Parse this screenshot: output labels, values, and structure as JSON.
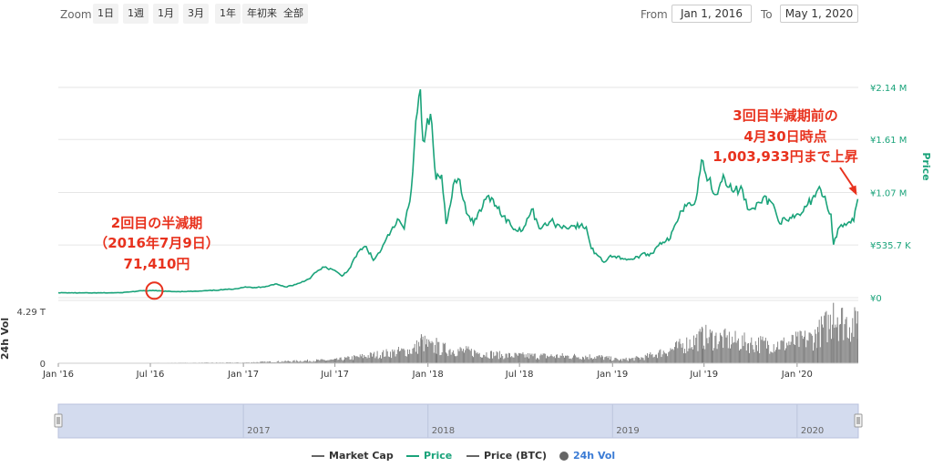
{
  "toolbar": {
    "zoom_label": "Zoom",
    "zoom_options": [
      "1日",
      "1週",
      "1月",
      "3月",
      "1年",
      "年初来",
      "全部"
    ],
    "from_label": "From",
    "from_value": "Jan 1, 2016",
    "to_label": "To",
    "to_value": "May 1, 2020"
  },
  "colors": {
    "price": "#1aa37a",
    "volume": "#7a7a7a",
    "annotation": "#e8321e",
    "navigator_fill": "#d3dbee",
    "grid": "#e6e6e6"
  },
  "chart_data": {
    "type": "line",
    "price_axis": {
      "title": "Price",
      "ylim": [
        0,
        2140000
      ],
      "ticks": [
        0,
        535700,
        1070000,
        1610000,
        2140000
      ],
      "tick_labels": [
        "¥0",
        "¥535.7 K",
        "¥1.07 M",
        "¥1.61 M",
        "¥2.14 M"
      ]
    },
    "volume_axis": {
      "title": "24h Vol",
      "ylim": [
        0,
        5.2
      ],
      "ticks": [
        0,
        4.29
      ],
      "tick_labels": [
        "0",
        "4.29 T"
      ]
    },
    "x_axis": {
      "range": [
        "2016-01-01",
        "2020-05-01"
      ],
      "tick_dates": [
        "2016-01-01",
        "2016-07-01",
        "2017-01-01",
        "2017-07-01",
        "2018-01-01",
        "2018-07-01",
        "2019-01-01",
        "2019-07-01",
        "2020-01-01"
      ],
      "tick_labels": [
        "Jan '16",
        "Jul '16",
        "Jan '17",
        "Jul '17",
        "Jan '18",
        "Jul '18",
        "Jan '19",
        "Jul '19",
        "Jan '20"
      ]
    },
    "price_series": [
      [
        "2016-01-01",
        50000
      ],
      [
        "2016-03-01",
        48000
      ],
      [
        "2016-05-01",
        50000
      ],
      [
        "2016-06-15",
        70000
      ],
      [
        "2016-07-09",
        71410
      ],
      [
        "2016-08-15",
        62000
      ],
      [
        "2016-10-01",
        65000
      ],
      [
        "2016-11-15",
        78000
      ],
      [
        "2016-12-15",
        90000
      ],
      [
        "2017-01-05",
        110000
      ],
      [
        "2017-01-20",
        100000
      ],
      [
        "2017-02-15",
        115000
      ],
      [
        "2017-03-05",
        140000
      ],
      [
        "2017-03-25",
        110000
      ],
      [
        "2017-04-15",
        135000
      ],
      [
        "2017-05-10",
        190000
      ],
      [
        "2017-05-25",
        260000
      ],
      [
        "2017-06-10",
        310000
      ],
      [
        "2017-06-25",
        290000
      ],
      [
        "2017-07-15",
        220000
      ],
      [
        "2017-08-01",
        310000
      ],
      [
        "2017-08-15",
        460000
      ],
      [
        "2017-09-01",
        520000
      ],
      [
        "2017-09-15",
        380000
      ],
      [
        "2017-10-01",
        490000
      ],
      [
        "2017-10-20",
        680000
      ],
      [
        "2017-11-05",
        790000
      ],
      [
        "2017-11-15",
        700000
      ],
      [
        "2017-11-29",
        1100000
      ],
      [
        "2017-12-08",
        1800000
      ],
      [
        "2017-12-17",
        2120000
      ],
      [
        "2017-12-22",
        1600000
      ],
      [
        "2017-12-28",
        1700000
      ],
      [
        "2018-01-06",
        1870000
      ],
      [
        "2018-01-17",
        1200000
      ],
      [
        "2018-01-28",
        1250000
      ],
      [
        "2018-02-06",
        750000
      ],
      [
        "2018-02-20",
        1150000
      ],
      [
        "2018-03-05",
        1200000
      ],
      [
        "2018-03-18",
        860000
      ],
      [
        "2018-04-01",
        750000
      ],
      [
        "2018-04-25",
        1000000
      ],
      [
        "2018-05-10",
        1000000
      ],
      [
        "2018-05-30",
        830000
      ],
      [
        "2018-06-25",
        680000
      ],
      [
        "2018-07-10",
        720000
      ],
      [
        "2018-07-25",
        900000
      ],
      [
        "2018-08-12",
        700000
      ],
      [
        "2018-09-01",
        780000
      ],
      [
        "2018-09-20",
        720000
      ],
      [
        "2018-10-15",
        730000
      ],
      [
        "2018-11-10",
        720000
      ],
      [
        "2018-11-20",
        500000
      ],
      [
        "2018-12-05",
        420000
      ],
      [
        "2018-12-15",
        360000
      ],
      [
        "2018-12-28",
        430000
      ],
      [
        "2019-01-20",
        400000
      ],
      [
        "2019-02-10",
        390000
      ],
      [
        "2019-02-25",
        430000
      ],
      [
        "2019-03-20",
        450000
      ],
      [
        "2019-04-05",
        560000
      ],
      [
        "2019-04-25",
        600000
      ],
      [
        "2019-05-15",
        880000
      ],
      [
        "2019-05-30",
        960000
      ],
      [
        "2019-06-15",
        1000000
      ],
      [
        "2019-06-26",
        1400000
      ],
      [
        "2019-07-10",
        1200000
      ],
      [
        "2019-07-25",
        1050000
      ],
      [
        "2019-08-08",
        1250000
      ],
      [
        "2019-08-25",
        1090000
      ],
      [
        "2019-09-15",
        1100000
      ],
      [
        "2019-09-25",
        900000
      ],
      [
        "2019-10-10",
        900000
      ],
      [
        "2019-10-26",
        1020000
      ],
      [
        "2019-11-15",
        950000
      ],
      [
        "2019-11-25",
        780000
      ],
      [
        "2019-12-15",
        780000
      ],
      [
        "2020-01-10",
        860000
      ],
      [
        "2020-01-31",
        1010000
      ],
      [
        "2020-02-14",
        1130000
      ],
      [
        "2020-02-28",
        960000
      ],
      [
        "2020-03-08",
        850000
      ],
      [
        "2020-03-13",
        540000
      ],
      [
        "2020-03-25",
        720000
      ],
      [
        "2020-04-10",
        760000
      ],
      [
        "2020-04-22",
        780000
      ],
      [
        "2020-04-30",
        1003933
      ]
    ],
    "volume_envelope": [
      [
        "2016-01-01",
        0.02
      ],
      [
        "2016-07-01",
        0.03
      ],
      [
        "2017-01-01",
        0.06
      ],
      [
        "2017-07-01",
        0.3
      ],
      [
        "2017-12-01",
        1.2
      ],
      [
        "2017-12-20",
        1.9
      ],
      [
        "2018-01-10",
        1.4
      ],
      [
        "2018-06-01",
        0.7
      ],
      [
        "2018-12-01",
        0.6
      ],
      [
        "2019-01-15",
        0.3
      ],
      [
        "2019-03-01",
        0.5
      ],
      [
        "2019-05-01",
        1.3
      ],
      [
        "2019-07-01",
        2.4
      ],
      [
        "2019-10-01",
        1.8
      ],
      [
        "2019-12-01",
        1.7
      ],
      [
        "2020-02-01",
        2.3
      ],
      [
        "2020-03-15",
        4.1
      ],
      [
        "2020-04-30",
        3.4
      ]
    ],
    "volume_spikes": [
      [
        "2017-12-18",
        2.4
      ],
      [
        "2018-01-17",
        2.1
      ],
      [
        "2019-06-27",
        2.9
      ],
      [
        "2019-07-16",
        2.6
      ],
      [
        "2020-02-10",
        3.0
      ],
      [
        "2020-03-12",
        5.0
      ],
      [
        "2020-03-20",
        3.8
      ],
      [
        "2020-04-29",
        4.3
      ]
    ],
    "navigator_labels": [
      "2017",
      "2018",
      "2019",
      "2020"
    ],
    "annotations": [
      {
        "lines": [
          "2回目の半減期",
          "（2016年7月9日）",
          "71,410円"
        ],
        "date": "2016-07-09",
        "value": 71410
      },
      {
        "lines": [
          "3回目半減期前の",
          "4月30日時点",
          "1,003,933円まで上昇"
        ],
        "date": "2020-04-30",
        "value": 1003933
      }
    ]
  },
  "legend": [
    {
      "label": "Market Cap",
      "color": "#666666",
      "kind": "line"
    },
    {
      "label": "Price",
      "color": "#1aa37a",
      "kind": "line"
    },
    {
      "label": "Price (BTC)",
      "color": "#666666",
      "kind": "line"
    },
    {
      "label": "24h Vol",
      "color": "#666666",
      "kind": "dot"
    }
  ]
}
